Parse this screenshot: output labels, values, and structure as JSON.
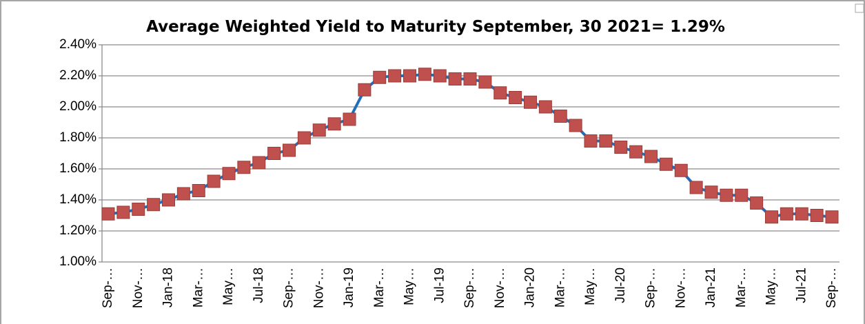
{
  "chart_data": {
    "type": "line",
    "title": "Average Weighted Yield to Maturity September, 30 2021= 1.29%",
    "categories": [
      "Sep-…",
      null,
      "Nov-…",
      null,
      "Jan-18",
      null,
      "Mar-…",
      null,
      "May…",
      null,
      "Jul-18",
      null,
      "Sep-…",
      null,
      "Nov-…",
      null,
      "Jan-19",
      null,
      "Mar-…",
      null,
      "May…",
      null,
      "Jul-19",
      null,
      "Sep-…",
      null,
      "Nov-…",
      null,
      "Jan-20",
      null,
      "Mar-…",
      null,
      "May…",
      null,
      "Jul-20",
      null,
      "Sep-…",
      null,
      "Nov-…",
      null,
      "Jan-21",
      null,
      "Mar-…",
      null,
      "May…",
      null,
      "Jul-21",
      null,
      "Sep-…"
    ],
    "series": [
      {
        "name": "Average Weighted Yield to Maturity",
        "color": "#1f6fbf",
        "marker_color": "#c0504d",
        "values": [
          1.31,
          1.32,
          1.34,
          1.37,
          1.4,
          1.44,
          1.46,
          1.52,
          1.57,
          1.61,
          1.64,
          1.7,
          1.72,
          1.8,
          1.85,
          1.89,
          1.92,
          2.11,
          2.19,
          2.2,
          2.2,
          2.21,
          2.2,
          2.18,
          2.18,
          2.16,
          2.09,
          2.06,
          2.03,
          2.0,
          1.94,
          1.88,
          1.78,
          1.78,
          1.74,
          1.71,
          1.68,
          1.63,
          1.59,
          1.48,
          1.45,
          1.43,
          1.43,
          1.38,
          1.29,
          1.31,
          1.31,
          1.3,
          1.29
        ]
      }
    ],
    "ylim": [
      1.0,
      2.4
    ],
    "yticks": [
      {
        "value": 1.0,
        "label": "1.00%"
      },
      {
        "value": 1.2,
        "label": "1.20%"
      },
      {
        "value": 1.4,
        "label": "1.40%"
      },
      {
        "value": 1.6,
        "label": "1.60%"
      },
      {
        "value": 1.8,
        "label": "1.80%"
      },
      {
        "value": 2.0,
        "label": "2.00%"
      },
      {
        "value": 2.2,
        "label": "2.20%"
      },
      {
        "value": 2.4,
        "label": "2.40%"
      }
    ],
    "grid": true
  }
}
